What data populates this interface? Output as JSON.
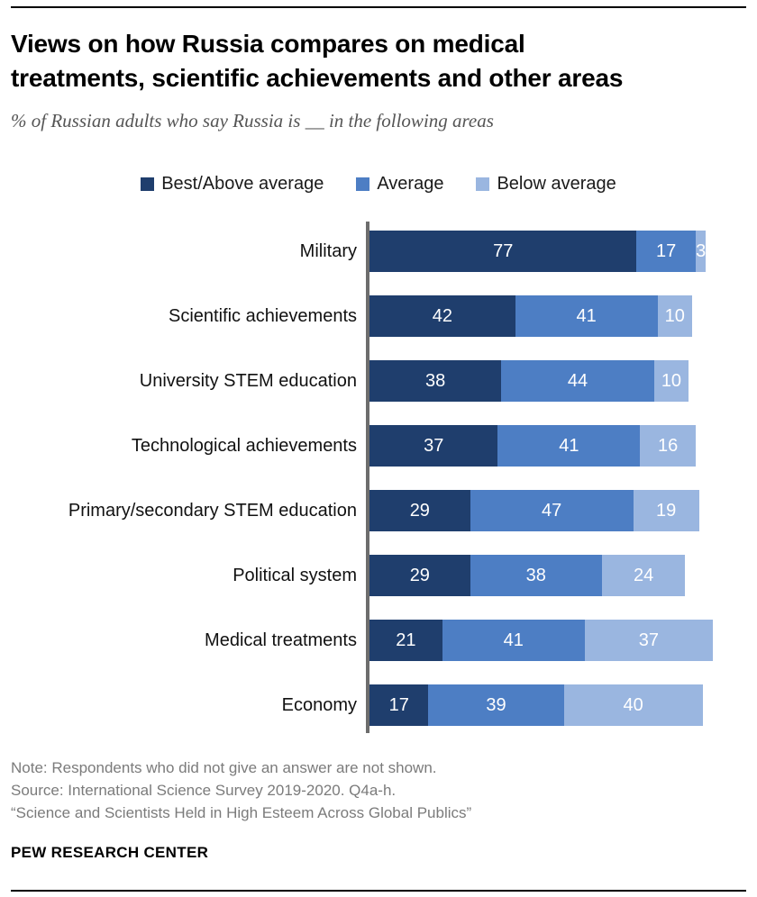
{
  "header": {
    "title_lines": [
      "Views on how Russia compares on medical",
      "treatments, scientific achievements and other areas"
    ],
    "subtitle": "% of Russian adults who say Russia is __ in the following areas"
  },
  "colors": {
    "best_above_average": "#1f3e6d",
    "average": "#4d7ec4",
    "below_average": "#9ab6e0",
    "axis": "#6d6d6d"
  },
  "legend": [
    {
      "label": "Best/Above average",
      "color": "#1f3e6d"
    },
    {
      "label": "Average",
      "color": "#4d7ec4"
    },
    {
      "label": "Below average",
      "color": "#9ab6e0"
    }
  ],
  "chart_data": {
    "type": "bar",
    "orientation": "horizontal",
    "stacked": true,
    "title": "Views on how Russia compares on medical treatments, scientific achievements and other areas",
    "subtitle": "% of Russian adults who say Russia is __ in the following areas",
    "categories": [
      "Military",
      "Scientific achievements",
      "University STEM education",
      "Technological achievements",
      "Primary/secondary STEM education",
      "Political system",
      "Medical treatments",
      "Economy"
    ],
    "series": [
      {
        "name": "Best/Above average",
        "color": "#1f3e6d",
        "values": [
          77,
          42,
          38,
          37,
          29,
          29,
          21,
          17
        ]
      },
      {
        "name": "Average",
        "color": "#4d7ec4",
        "values": [
          17,
          41,
          44,
          41,
          47,
          38,
          41,
          39
        ]
      },
      {
        "name": "Below average",
        "color": "#9ab6e0",
        "values": [
          3,
          10,
          10,
          16,
          19,
          24,
          37,
          40
        ]
      }
    ],
    "xlim": [
      0,
      100
    ],
    "value_labels": "inside, white",
    "legend_position": "top",
    "grid": false
  },
  "footer": {
    "note": "Note: Respondents who did not give an answer are not shown.",
    "source": "Source: International Science Survey 2019-2020. Q4a-h.",
    "report": "“Science and Scientists Held in High Esteem Across Global Publics”",
    "brand": "PEW RESEARCH CENTER"
  }
}
